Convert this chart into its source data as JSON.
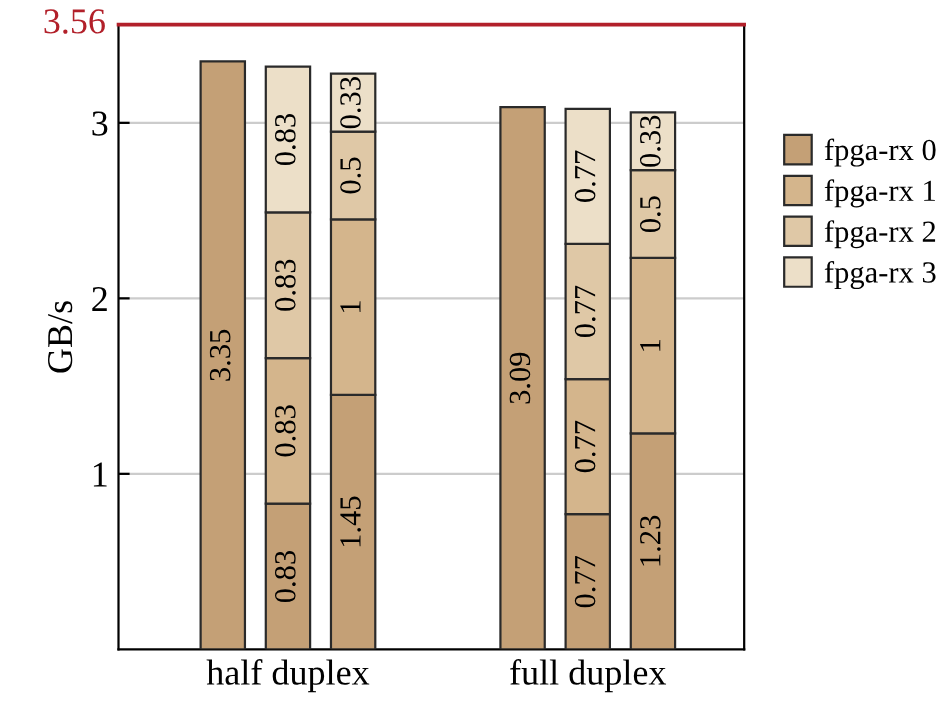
{
  "chart_data": {
    "type": "bar",
    "stacked": true,
    "ylabel": "GB/s",
    "categories": [
      null,
      "half duplex",
      null,
      null,
      "full duplex",
      null
    ],
    "series": [
      {
        "name": "fpga-rx 0",
        "color": "#c4a076",
        "values": [
          3.35,
          0.83,
          1.45,
          3.09,
          0.77,
          1.23
        ]
      },
      {
        "name": "fpga-rx 1",
        "color": "#d4b58c",
        "values": [
          null,
          0.83,
          1,
          null,
          0.77,
          1
        ]
      },
      {
        "name": "fpga-rx 2",
        "color": "#dfc8a6",
        "values": [
          null,
          0.83,
          0.5,
          null,
          0.77,
          0.5
        ]
      },
      {
        "name": "fpga-rx 3",
        "color": "#ecdfc8",
        "values": [
          null,
          0.83,
          0.33,
          null,
          0.77,
          0.33
        ]
      }
    ],
    "ylim": [
      0,
      3.56
    ],
    "yticks": [
      1,
      2,
      3
    ],
    "grid": "y",
    "legend": "right",
    "data_labels": true,
    "ref_lines": [
      {
        "axis": "y",
        "value": 3.56,
        "label": "3.56",
        "color": "#b2202a"
      }
    ]
  }
}
